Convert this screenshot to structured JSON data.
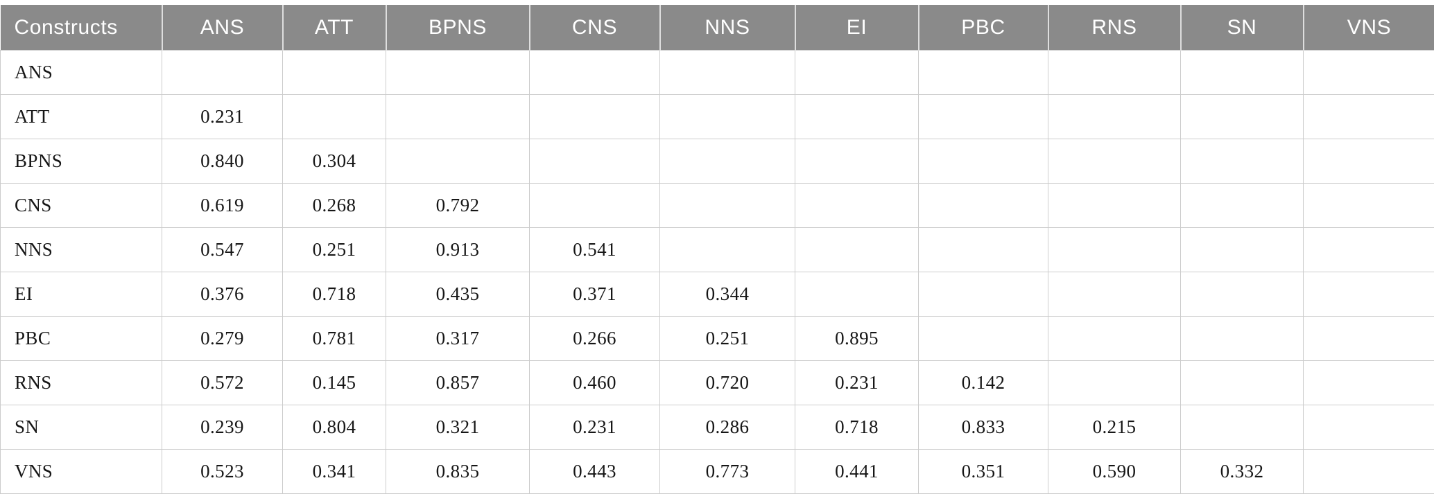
{
  "colors": {
    "header_bg": "#8a8a8a",
    "header_text": "#ffffff",
    "grid_line": "#cccccc",
    "body_text": "#161616",
    "page_bg": "#ffffff"
  },
  "table": {
    "headers": [
      "Constructs",
      "ANS",
      "ATT",
      "BPNS",
      "CNS",
      "NNS",
      "EI",
      "PBC",
      "RNS",
      "SN",
      "VNS"
    ],
    "rows": [
      {
        "label": "ANS",
        "values": [
          "",
          "",
          "",
          "",
          "",
          "",
          "",
          "",
          "",
          ""
        ]
      },
      {
        "label": "ATT",
        "values": [
          "0.231",
          "",
          "",
          "",
          "",
          "",
          "",
          "",
          "",
          ""
        ]
      },
      {
        "label": "BPNS",
        "values": [
          "0.840",
          "0.304",
          "",
          "",
          "",
          "",
          "",
          "",
          "",
          ""
        ]
      },
      {
        "label": "CNS",
        "values": [
          "0.619",
          "0.268",
          "0.792",
          "",
          "",
          "",
          "",
          "",
          "",
          ""
        ]
      },
      {
        "label": "NNS",
        "values": [
          "0.547",
          "0.251",
          "0.913",
          "0.541",
          "",
          "",
          "",
          "",
          "",
          ""
        ]
      },
      {
        "label": "EI",
        "values": [
          "0.376",
          "0.718",
          "0.435",
          "0.371",
          "0.344",
          "",
          "",
          "",
          "",
          ""
        ]
      },
      {
        "label": "PBC",
        "values": [
          "0.279",
          "0.781",
          "0.317",
          "0.266",
          "0.251",
          "0.895",
          "",
          "",
          "",
          ""
        ]
      },
      {
        "label": "RNS",
        "values": [
          "0.572",
          "0.145",
          "0.857",
          "0.460",
          "0.720",
          "0.231",
          "0.142",
          "",
          "",
          ""
        ]
      },
      {
        "label": "SN",
        "values": [
          "0.239",
          "0.804",
          "0.321",
          "0.231",
          "0.286",
          "0.718",
          "0.833",
          "0.215",
          "",
          ""
        ]
      },
      {
        "label": "VNS",
        "values": [
          "0.523",
          "0.341",
          "0.835",
          "0.443",
          "0.773",
          "0.441",
          "0.351",
          "0.590",
          "0.332",
          ""
        ]
      }
    ]
  },
  "chart_data": {
    "type": "table",
    "title": "",
    "columns": [
      "Constructs",
      "ANS",
      "ATT",
      "BPNS",
      "CNS",
      "NNS",
      "EI",
      "PBC",
      "RNS",
      "SN",
      "VNS"
    ],
    "matrix_row_order": [
      "ANS",
      "ATT",
      "BPNS",
      "CNS",
      "NNS",
      "EI",
      "PBC",
      "RNS",
      "SN",
      "VNS"
    ],
    "lower_triangle_values": {
      "ATT": {
        "ANS": 0.231
      },
      "BPNS": {
        "ANS": 0.84,
        "ATT": 0.304
      },
      "CNS": {
        "ANS": 0.619,
        "ATT": 0.268,
        "BPNS": 0.792
      },
      "NNS": {
        "ANS": 0.547,
        "ATT": 0.251,
        "BPNS": 0.913,
        "CNS": 0.541
      },
      "EI": {
        "ANS": 0.376,
        "ATT": 0.718,
        "BPNS": 0.435,
        "CNS": 0.371,
        "NNS": 0.344
      },
      "PBC": {
        "ANS": 0.279,
        "ATT": 0.781,
        "BPNS": 0.317,
        "CNS": 0.266,
        "NNS": 0.251,
        "EI": 0.895
      },
      "RNS": {
        "ANS": 0.572,
        "ATT": 0.145,
        "BPNS": 0.857,
        "CNS": 0.46,
        "NNS": 0.72,
        "EI": 0.231,
        "PBC": 0.142
      },
      "SN": {
        "ANS": 0.239,
        "ATT": 0.804,
        "BPNS": 0.321,
        "CNS": 0.231,
        "NNS": 0.286,
        "EI": 0.718,
        "PBC": 0.833,
        "RNS": 0.215
      },
      "VNS": {
        "ANS": 0.523,
        "ATT": 0.341,
        "BPNS": 0.835,
        "CNS": 0.443,
        "NNS": 0.773,
        "EI": 0.441,
        "PBC": 0.351,
        "RNS": 0.59,
        "SN": 0.332
      }
    }
  }
}
